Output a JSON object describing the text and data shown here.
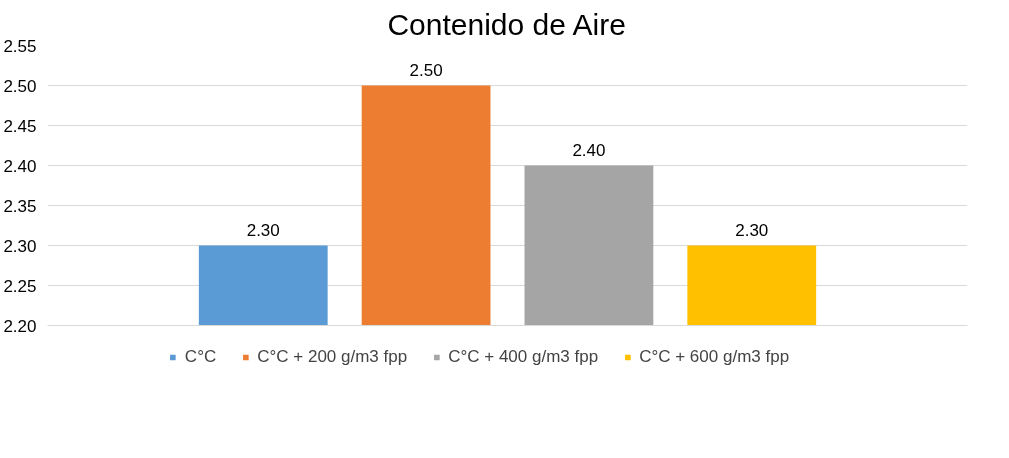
{
  "chart_data": {
    "type": "bar",
    "title": "Contenido de Aire",
    "categories": [
      null
    ],
    "series": [
      {
        "name": "C°C",
        "color": "#5b9bd5",
        "values": [
          2.3
        ],
        "value_labels": [
          "2.30"
        ]
      },
      {
        "name": "C°C + 200 g/m3 fpp",
        "color": "#ed7d31",
        "values": [
          2.5
        ],
        "value_labels": [
          "2.50"
        ]
      },
      {
        "name": "C°C + 400 g/m3 fpp",
        "color": "#a5a5a5",
        "values": [
          2.4
        ],
        "value_labels": [
          "2.40"
        ]
      },
      {
        "name": "C°C + 600 g/m3 fpp",
        "color": "#ffc000",
        "values": [
          2.3
        ],
        "value_labels": [
          "2.30"
        ]
      }
    ],
    "ylim": [
      2.2,
      2.55
    ],
    "yticks": [
      {
        "value": 2.2,
        "label": "2.20"
      },
      {
        "value": 2.25,
        "label": "2.25"
      },
      {
        "value": 2.3,
        "label": "2.30"
      },
      {
        "value": 2.35,
        "label": "2.35"
      },
      {
        "value": 2.4,
        "label": "2.40"
      },
      {
        "value": 2.45,
        "label": "2.45"
      },
      {
        "value": 2.5,
        "label": "2.50"
      },
      {
        "value": 2.55,
        "label": "2.55"
      }
    ],
    "grid": "y",
    "legend": "bottom"
  }
}
